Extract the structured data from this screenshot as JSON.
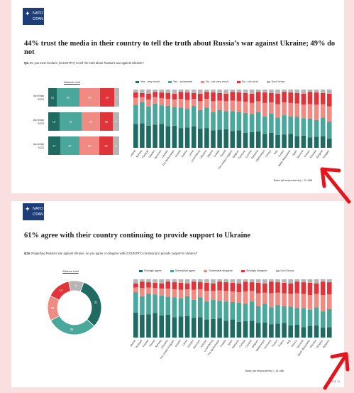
{
  "logo": {
    "line1": "NATO",
    "line2": "OTAN"
  },
  "colors": {
    "very": "#1f6b62",
    "somewhat": "#4aa79c",
    "not_very": "#f08a82",
    "not_at_all": "#e0343a",
    "dont_know": "#b5b5b5",
    "arrow": "#e4151c"
  },
  "slide1": {
    "title": "44% trust the media in their country to tell the truth about Russia’s war against Ukraine; 49% do not",
    "question_prefix": "Q5.",
    "question": "Do you trust media in (COUNTRY) to tell the truth about Russia's war against Ukraine?",
    "alliance_label": "Alliance total",
    "base": "Base (all respondents) = 31,388"
  },
  "slide2": {
    "title": "61% agree with their country continuing to provide support to Ukraine",
    "question_prefix": "Q16.",
    "question": "Regarding Russia's war against Ukraine, do you agree or disagree with (COUNTRY) continuing to provide support to Ukraine?",
    "alliance_label": "Alliance total",
    "base": "Base (all respondents) = 31,388",
    "page": "| PAGE 14"
  },
  "chart_data": [
    {
      "type": "bar",
      "title": "Alliance total",
      "categories": [
        "Apr-May 2024",
        "Apr-May 2023",
        "Apr-May 2022"
      ],
      "series": [
        {
          "name": "Yes - very much",
          "values": [
            12,
            16,
            17
          ]
        },
        {
          "name": "Yes - somewhat",
          "values": [
            32,
            31,
            27
          ]
        },
        {
          "name": "No - not very much",
          "values": [
            29,
            26,
            28
          ]
        },
        {
          "name": "No - not at all",
          "values": [
            20,
            18,
            19
          ]
        },
        {
          "name": "Don't know",
          "values": [
            7,
            9,
            9
          ]
        }
      ]
    },
    {
      "type": "bar",
      "categories": [
        "Finland",
        "Norway",
        "Portugal",
        "Sweden",
        "Denmark",
        "Canada",
        "The Netherlands",
        "Iceland",
        "Estonia",
        "Latvia",
        "Luxembourg",
        "Lithuania",
        "Albania",
        "Croatia",
        "Poland",
        "The United Kingdom",
        "Belgium",
        "Germany",
        "Czechia",
        "Romania",
        "Montenegro",
        "Türkiye",
        "Italy",
        "France",
        "North Macedonia",
        "Spain",
        "Slovenia",
        "Greece",
        "Slovakia",
        "Bulgaria",
        "Hungary"
      ],
      "legend": [
        "Yes - very much",
        "Yes - somewhat",
        "No - not very much",
        "No - not at all",
        "Don't know"
      ]
    },
    {
      "type": "pie",
      "title": "Alliance total",
      "categories": [
        "Strongly agree",
        "Somewhat agree",
        "Somewhat disagree",
        "Strongly disagree",
        "Don't know"
      ],
      "values": [
        31,
        30,
        15,
        14,
        9
      ]
    },
    {
      "type": "bar",
      "categories": [
        "Albania",
        "Portugal",
        "Finland",
        "Poland",
        "Norway",
        "Lithuania",
        "The United Kingdom",
        "Iceland",
        "Latvia",
        "Sweden",
        "Denmark",
        "Estonia",
        "Luxembourg",
        "The Netherlands",
        "Croatia",
        "Spain",
        "Romania",
        "Canada",
        "Czechia",
        "Belgium",
        "Montenegro",
        "Germany",
        "Türkiye",
        "France",
        "Italy",
        "Greece",
        "Slovenia",
        "North Macedonia",
        "Slovakia",
        "Hungary",
        "Bulgaria"
      ],
      "legend": [
        "Strongly agree",
        "Somewhat agree",
        "Somewhat disagree",
        "Strongly disagree",
        "Don't know"
      ]
    }
  ]
}
